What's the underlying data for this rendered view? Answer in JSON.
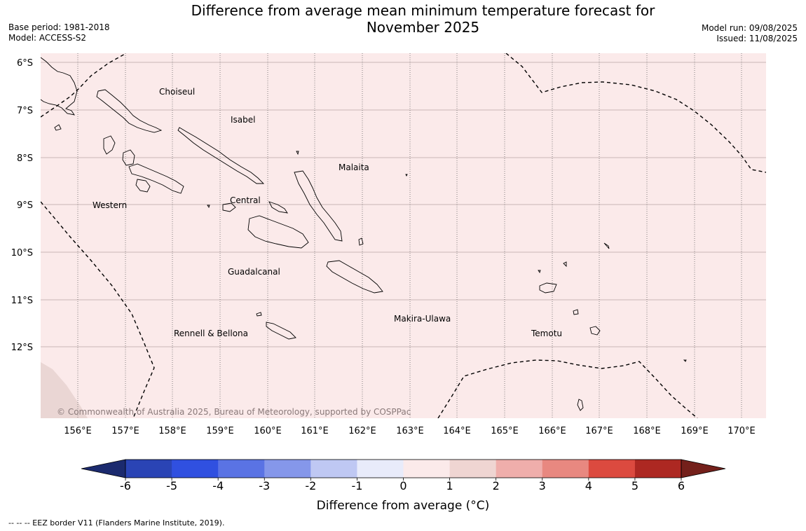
{
  "title_line1": "Difference from average mean minimum temperature forecast for",
  "title_line2": "November 2025",
  "meta_left": {
    "base_period": "Base period: 1981-2018",
    "model": "Model: ACCESS-S2"
  },
  "meta_right": {
    "model_run": "Model run: 09/08/2025",
    "issued": "Issued: 11/08/2025"
  },
  "map": {
    "background_color": "#fbeaea",
    "lat_labels": [
      "6°S",
      "7°S",
      "8°S",
      "9°S",
      "10°S",
      "11°S",
      "12°S"
    ],
    "lon_labels": [
      "156°E",
      "157°E",
      "158°E",
      "159°E",
      "160°E",
      "161°E",
      "162°E",
      "163°E",
      "164°E",
      "165°E",
      "166°E",
      "167°E",
      "168°E",
      "169°E",
      "170°E"
    ],
    "regions": {
      "choiseul": "Choiseul",
      "isabel": "Isabel",
      "malaita": "Malaita",
      "western": "Western",
      "central": "Central",
      "guadalcanal": "Guadalcanal",
      "makira": "Makira-Ulawa",
      "rennell": "Rennell & Bellona",
      "temotu": "Temotu"
    },
    "copyright": "© Commonwealth of Australia 2025, Bureau of Meteorology, supported by COSPPac"
  },
  "colorbar": {
    "colors": [
      "#1b2a6e",
      "#2a44b5",
      "#3050e0",
      "#5a73e4",
      "#8597ea",
      "#bfc8f3",
      "#e8ebfa",
      "#fbeaea",
      "#efd5d2",
      "#efaeab",
      "#e88880",
      "#dc4a3f",
      "#ad2822",
      "#74201b"
    ],
    "ticks": [
      "-6",
      "-5",
      "-4",
      "-3",
      "-2",
      "-1",
      "0",
      "1",
      "2",
      "3",
      "4",
      "5",
      "6"
    ],
    "label": "Difference from average (°C)"
  },
  "footer": "-- -- -- EEZ border V11 (Flanders Marine Institute, 2019)."
}
